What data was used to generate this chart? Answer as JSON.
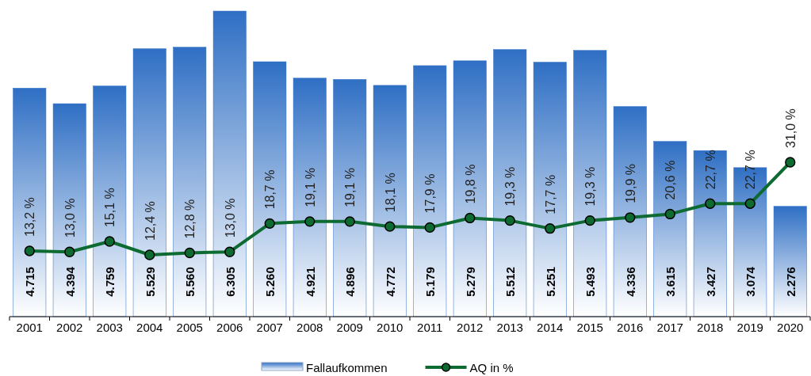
{
  "chart_data": {
    "type": "bar",
    "categories": [
      "2001",
      "2002",
      "2003",
      "2004",
      "2005",
      "2006",
      "2007",
      "2008",
      "2009",
      "2010",
      "2011",
      "2012",
      "2013",
      "2014",
      "2015",
      "2016",
      "2017",
      "2018",
      "2019",
      "2020"
    ],
    "series": [
      {
        "name": "Fallaufkommen",
        "color": "#2f6fc4",
        "values": [
          4715,
          4394,
          4759,
          5529,
          5560,
          6305,
          5260,
          4921,
          4896,
          4772,
          5179,
          5279,
          5512,
          5251,
          5493,
          4336,
          3615,
          3427,
          3074,
          2276
        ],
        "value_labels": [
          "4.715",
          "4.394",
          "4.759",
          "5.529",
          "5.560",
          "6.305",
          "5.260",
          "4.921",
          "4.896",
          "4.772",
          "5.179",
          "5.279",
          "5.512",
          "5.251",
          "5.493",
          "4.336",
          "3.615",
          "3.427",
          "3.074",
          "2.276"
        ]
      },
      {
        "name": "AQ in %",
        "type": "line",
        "axis": "y2",
        "color": "#0d6b32",
        "values": [
          13.2,
          13.0,
          15.1,
          12.4,
          12.8,
          13.0,
          18.7,
          19.1,
          19.1,
          18.1,
          17.9,
          19.8,
          19.3,
          17.7,
          19.3,
          19.9,
          20.6,
          22.7,
          22.7,
          31.0
        ],
        "value_labels": [
          "13,2 %",
          "13,0 %",
          "15,1 %",
          "12,4 %",
          "12,8 %",
          "13,0 %",
          "18,7 %",
          "19,1 %",
          "19,1 %",
          "18,1 %",
          "17,9 %",
          "19,8 %",
          "19,3 %",
          "17,7 %",
          "19,3 %",
          "19,9 %",
          "20,6 %",
          "22,7 %",
          "22,7 %",
          "31,0 %"
        ]
      }
    ],
    "tick_labels": "x",
    "legend": "bottom",
    "marker": "circle",
    "line_style": "solid"
  }
}
